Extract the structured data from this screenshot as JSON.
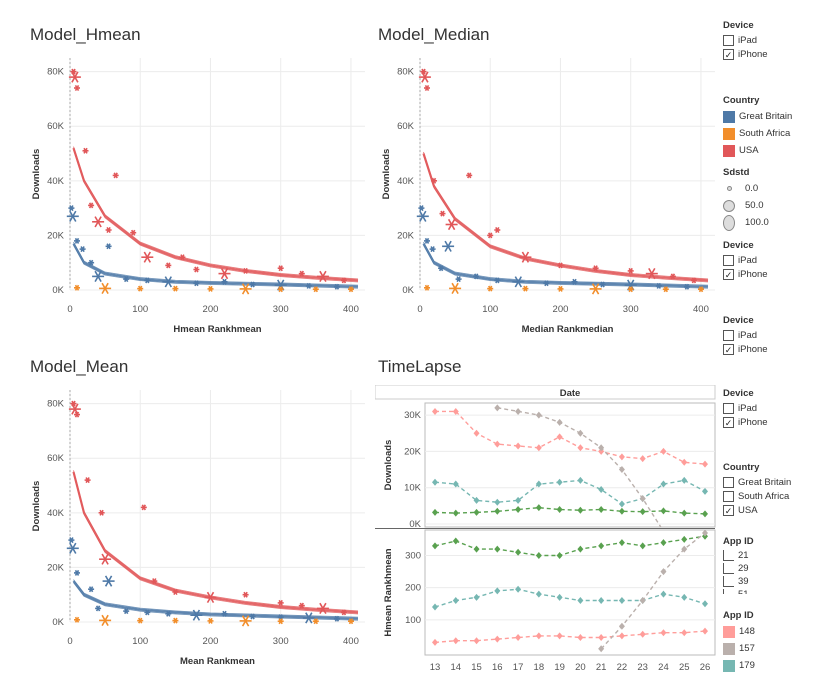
{
  "panels": {
    "hmean": {
      "title": "Model_Hmean",
      "xlabel": "Hmean Rankhmean",
      "ylabel": "Downloads"
    },
    "median": {
      "title": "Model_Median",
      "xlabel": "Median Rankmedian",
      "ylabel": "Downloads"
    },
    "mean": {
      "title": "Model_Mean",
      "xlabel": "Mean Rankmean",
      "ylabel": "Downloads"
    },
    "timelapse": {
      "title": "TimeLapse",
      "column_header": "Date",
      "ylabel_top": "Downloads",
      "ylabel_bottom": "Hmean Rankhmean"
    }
  },
  "legends": {
    "device1": {
      "title": "Device",
      "items": [
        {
          "label": "iPad",
          "checked": ""
        },
        {
          "label": "iPhone",
          "checked": "✓"
        }
      ]
    },
    "country": {
      "title": "Country",
      "items": [
        {
          "label": "Great Britain",
          "color": "#4e79a7"
        },
        {
          "label": "South Africa",
          "color": "#f28e2b"
        },
        {
          "label": "USA",
          "color": "#e15759"
        }
      ]
    },
    "sdstd": {
      "title": "Sdstd",
      "items": [
        {
          "label": "0.0"
        },
        {
          "label": "50.0"
        },
        {
          "label": "100.0"
        }
      ]
    },
    "device2": {
      "title": "Device",
      "items": [
        {
          "label": "iPad",
          "checked": ""
        },
        {
          "label": "iPhone",
          "checked": "✓"
        }
      ]
    },
    "device3": {
      "title": "Device",
      "items": [
        {
          "label": "iPad",
          "checked": ""
        },
        {
          "label": "iPhone",
          "checked": "✓"
        }
      ]
    },
    "device4": {
      "title": "Device",
      "items": [
        {
          "label": "iPad",
          "checked": ""
        },
        {
          "label": "iPhone",
          "checked": "✓"
        }
      ]
    },
    "country2": {
      "title": "Country",
      "items": [
        {
          "label": "Great Britain",
          "checked": ""
        },
        {
          "label": "South Africa",
          "checked": ""
        },
        {
          "label": "USA",
          "checked": "✓"
        }
      ]
    },
    "appid_filter": {
      "title": "App ID",
      "items": [
        {
          "label": "21"
        },
        {
          "label": "29"
        },
        {
          "label": "39"
        },
        {
          "label": "51"
        }
      ]
    },
    "appid_color": {
      "title": "App ID",
      "items": [
        {
          "label": "148",
          "color": "#ff9d9a"
        },
        {
          "label": "157",
          "color": "#bab0ac"
        },
        {
          "label": "179",
          "color": "#76b7b2"
        }
      ]
    }
  },
  "colors": {
    "gb": "#4e79a7",
    "sa": "#f28e2b",
    "usa": "#e15759",
    "green": "#59a14f",
    "teal": "#76b7b2",
    "pink": "#ff9d9a",
    "gray": "#bab0ac"
  },
  "chart_data": [
    {
      "type": "scatter",
      "title": "Model_Hmean",
      "xlabel": "Hmean Rankhmean",
      "ylabel": "Downloads",
      "xlim": [
        0,
        420
      ],
      "ylim": [
        0,
        85000
      ],
      "xticks": [
        0,
        100,
        200,
        300,
        400
      ],
      "yticks": [
        0,
        20000,
        40000,
        60000,
        80000
      ],
      "ytick_labels": [
        "0K",
        "20K",
        "40K",
        "60K",
        "80K"
      ],
      "series": [
        {
          "name": "USA",
          "color": "#e15759",
          "x": [
            5,
            7,
            10,
            22,
            30,
            40,
            55,
            65,
            90,
            110,
            140,
            160,
            180,
            220,
            250,
            300,
            330,
            360,
            390
          ],
          "y": [
            80000,
            78000,
            74000,
            51000,
            31000,
            25000,
            22000,
            42000,
            21000,
            12000,
            9000,
            12000,
            7500,
            6000,
            7000,
            8000,
            6000,
            5000,
            3500
          ],
          "fit": [
            [
              5,
              52000
            ],
            [
              20,
              40000
            ],
            [
              50,
              27000
            ],
            [
              100,
              17000
            ],
            [
              150,
              12000
            ],
            [
              200,
              9000
            ],
            [
              250,
              7000
            ],
            [
              300,
              5500
            ],
            [
              350,
              4500
            ],
            [
              410,
              3500
            ]
          ]
        },
        {
          "name": "Great Britain",
          "color": "#4e79a7",
          "x": [
            2,
            4,
            10,
            18,
            30,
            40,
            55,
            80,
            110,
            140,
            180,
            220,
            260,
            300,
            340,
            380
          ],
          "y": [
            30000,
            27000,
            18000,
            15000,
            10000,
            5000,
            16000,
            4000,
            3500,
            3000,
            2500,
            3000,
            2000,
            1800,
            1500,
            1200
          ],
          "fit": [
            [
              5,
              17000
            ],
            [
              20,
              10000
            ],
            [
              50,
              6000
            ],
            [
              100,
              4000
            ],
            [
              150,
              3000
            ],
            [
              200,
              2600
            ],
            [
              300,
              2000
            ],
            [
              410,
              1200
            ]
          ]
        },
        {
          "name": "South Africa",
          "color": "#f28e2b",
          "x": [
            10,
            50,
            100,
            150,
            200,
            250,
            300,
            350,
            400
          ],
          "y": [
            800,
            600,
            500,
            500,
            400,
            400,
            300,
            300,
            300
          ]
        }
      ]
    },
    {
      "type": "scatter",
      "title": "Model_Median",
      "xlabel": "Median Rankmedian",
      "ylabel": "Downloads",
      "xlim": [
        0,
        420
      ],
      "ylim": [
        0,
        85000
      ],
      "xticks": [
        0,
        100,
        200,
        300,
        400
      ],
      "yticks": [
        0,
        20000,
        40000,
        60000,
        80000
      ],
      "ytick_labels": [
        "0K",
        "20K",
        "40K",
        "60K",
        "80K"
      ],
      "series": [
        {
          "name": "USA",
          "color": "#e15759",
          "x": [
            5,
            7,
            10,
            20,
            32,
            45,
            70,
            100,
            110,
            150,
            200,
            250,
            300,
            330,
            360,
            390
          ],
          "y": [
            80000,
            78000,
            74000,
            40000,
            28000,
            24000,
            42000,
            20000,
            22000,
            12000,
            9000,
            8000,
            7000,
            6000,
            5000,
            3500
          ],
          "fit": [
            [
              5,
              50000
            ],
            [
              20,
              38000
            ],
            [
              50,
              26000
            ],
            [
              100,
              16000
            ],
            [
              150,
              11500
            ],
            [
              200,
              9000
            ],
            [
              250,
              7000
            ],
            [
              300,
              5500
            ],
            [
              350,
              4500
            ],
            [
              410,
              3500
            ]
          ]
        },
        {
          "name": "Great Britain",
          "color": "#4e79a7",
          "x": [
            2,
            4,
            10,
            18,
            30,
            40,
            55,
            80,
            110,
            140,
            180,
            220,
            260,
            300,
            340,
            380
          ],
          "y": [
            30000,
            27000,
            18000,
            15000,
            8000,
            16000,
            4000,
            5000,
            3500,
            3000,
            2500,
            3000,
            2000,
            1800,
            1500,
            1200
          ],
          "fit": [
            [
              5,
              17000
            ],
            [
              20,
              10000
            ],
            [
              50,
              6000
            ],
            [
              100,
              4000
            ],
            [
              150,
              3000
            ],
            [
              200,
              2600
            ],
            [
              300,
              2000
            ],
            [
              410,
              1200
            ]
          ]
        },
        {
          "name": "South Africa",
          "color": "#f28e2b",
          "x": [
            10,
            50,
            100,
            150,
            200,
            250,
            300,
            350,
            400
          ],
          "y": [
            800,
            600,
            500,
            500,
            400,
            400,
            300,
            300,
            300
          ]
        }
      ]
    },
    {
      "type": "scatter",
      "title": "Model_Mean",
      "xlabel": "Mean Rankmean",
      "ylabel": "Downloads",
      "xlim": [
        0,
        420
      ],
      "ylim": [
        0,
        85000
      ],
      "xticks": [
        0,
        100,
        200,
        300,
        400
      ],
      "yticks": [
        0,
        20000,
        40000,
        60000,
        80000
      ],
      "ytick_labels": [
        "0K",
        "20K",
        "40K",
        "60K",
        "80K"
      ],
      "series": [
        {
          "name": "USA",
          "color": "#e15759",
          "x": [
            5,
            7,
            10,
            25,
            45,
            50,
            105,
            120,
            150,
            200,
            250,
            300,
            330,
            360,
            390
          ],
          "y": [
            80000,
            78000,
            76000,
            52000,
            40000,
            23000,
            42000,
            15000,
            11000,
            9000,
            10000,
            7000,
            6000,
            5000,
            3500
          ],
          "fit": [
            [
              5,
              55000
            ],
            [
              20,
              40000
            ],
            [
              50,
              26000
            ],
            [
              100,
              16000
            ],
            [
              150,
              11500
            ],
            [
              200,
              9000
            ],
            [
              250,
              7000
            ],
            [
              300,
              5500
            ],
            [
              350,
              4500
            ],
            [
              410,
              3500
            ]
          ]
        },
        {
          "name": "Great Britain",
          "color": "#4e79a7",
          "x": [
            2,
            4,
            10,
            30,
            40,
            55,
            80,
            110,
            140,
            180,
            220,
            260,
            300,
            340,
            380
          ],
          "y": [
            30000,
            27000,
            18000,
            12000,
            5000,
            15000,
            4000,
            3500,
            3000,
            2500,
            3000,
            2000,
            1800,
            1500,
            1200
          ],
          "fit": [
            [
              5,
              15000
            ],
            [
              20,
              10000
            ],
            [
              50,
              6500
            ],
            [
              100,
              4500
            ],
            [
              150,
              3500
            ],
            [
              200,
              2800
            ],
            [
              300,
              2000
            ],
            [
              410,
              1200
            ]
          ]
        },
        {
          "name": "South Africa",
          "color": "#f28e2b",
          "x": [
            10,
            50,
            100,
            150,
            200,
            250,
            300,
            350,
            400
          ],
          "y": [
            800,
            600,
            500,
            500,
            400,
            400,
            300,
            300,
            300
          ]
        }
      ]
    },
    {
      "type": "line",
      "title": "TimeLapse",
      "column_header": "Date",
      "x": [
        13,
        14,
        15,
        16,
        17,
        18,
        19,
        20,
        21,
        22,
        23,
        24,
        25,
        26
      ],
      "top": {
        "ylabel": "Downloads",
        "ylim": [
          0,
          32500
        ],
        "yticks": [
          0,
          10000,
          20000,
          30000
        ],
        "ytick_labels": [
          "0K",
          "10K",
          "20K",
          "30K"
        ],
        "series": [
          {
            "name": "148",
            "color": "#ff9d9a",
            "y": [
              31000,
              31000,
              25000,
              22000,
              21500,
              21000,
              24000,
              21000,
              20000,
              18500,
              18000,
              20000,
              17000,
              16500
            ]
          },
          {
            "name": "179",
            "color": "#76b7b2",
            "y": [
              11500,
              11000,
              6500,
              6000,
              6500,
              11000,
              11500,
              12000,
              9500,
              5500,
              7000,
              11000,
              12000,
              9000
            ]
          },
          {
            "name": "21",
            "color": "#59a14f",
            "y": [
              3200,
              3000,
              3200,
              3500,
              4000,
              4500,
              4000,
              3800,
              4000,
              3500,
              3400,
              3600,
              3000,
              2800
            ]
          },
          {
            "name": "157",
            "color": "#bab0ac",
            "y": [
              null,
              null,
              null,
              32000,
              31000,
              30000,
              28000,
              25000,
              21000,
              15000,
              7000,
              -2000,
              null,
              null
            ]
          }
        ]
      },
      "bottom": {
        "ylabel": "Hmean Rankhmean",
        "ylim": [
          0,
          370
        ],
        "yticks": [
          100,
          200,
          300
        ],
        "ytick_labels": [
          "100",
          "200",
          "300"
        ],
        "series": [
          {
            "name": "21",
            "color": "#59a14f",
            "y": [
              330,
              345,
              320,
              320,
              310,
              300,
              300,
              320,
              330,
              340,
              330,
              340,
              350,
              360
            ]
          },
          {
            "name": "179",
            "color": "#76b7b2",
            "y": [
              140,
              160,
              170,
              190,
              195,
              180,
              170,
              160,
              160,
              160,
              160,
              180,
              170,
              150
            ]
          },
          {
            "name": "148",
            "color": "#ff9d9a",
            "y": [
              30,
              35,
              35,
              40,
              45,
              50,
              50,
              45,
              45,
              50,
              55,
              60,
              60,
              65
            ]
          },
          {
            "name": "157",
            "color": "#bab0ac",
            "y": [
              null,
              null,
              null,
              null,
              null,
              null,
              null,
              null,
              10,
              80,
              160,
              250,
              320,
              370
            ]
          }
        ]
      }
    }
  ]
}
